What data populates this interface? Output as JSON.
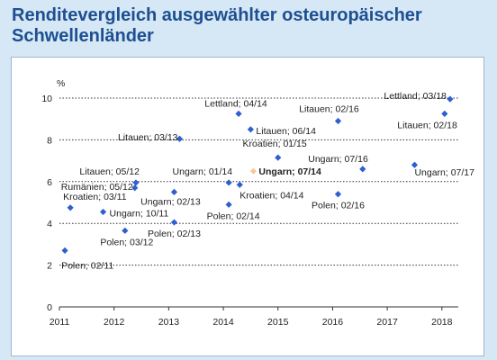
{
  "header": {
    "title_line1": "Renditevergleich ausgewählter osteuropäischer",
    "title_line2": "Schwellenländer"
  },
  "colors": {
    "background": "#d6e7f5",
    "title": "#1d4f91",
    "point": "#2e5fcf",
    "highlight_point": "#f6c8a2"
  },
  "chart_data": {
    "type": "scatter",
    "title": "Renditevergleich ausgewählter osteuropäischer Schwellenländer",
    "ylabel": "%",
    "xlabel": "",
    "xlim": [
      2011,
      2018.3
    ],
    "ylim": [
      0,
      10
    ],
    "x_ticks": [
      "2011",
      "2012",
      "2013",
      "2014",
      "2015",
      "2016",
      "2017",
      "2018"
    ],
    "y_ticks": [
      "0",
      "2",
      "4",
      "6",
      "8",
      "10"
    ],
    "grid": "horizontal dotted",
    "points": [
      {
        "label": "Polen; 02/11",
        "x": 2011.1,
        "y": 2.7
      },
      {
        "label": "Kroatien; 03/11",
        "x": 2011.2,
        "y": 4.75
      },
      {
        "label": "Ungarn; 10/11",
        "x": 2011.8,
        "y": 4.55
      },
      {
        "label": "Polen; 03/12",
        "x": 2012.2,
        "y": 3.65
      },
      {
        "label": "Rumänien; 05/12",
        "x": 2012.38,
        "y": 5.7
      },
      {
        "label": "Litauen; 05/12",
        "x": 2012.4,
        "y": 5.95
      },
      {
        "label": "Litauen; 03/13",
        "x": 2013.2,
        "y": 8.05
      },
      {
        "label": "Ungarn; 02/13",
        "x": 2013.1,
        "y": 5.5
      },
      {
        "label": "Polen; 02/13",
        "x": 2013.1,
        "y": 4.05
      },
      {
        "label": "Ungarn; 01/14",
        "x": 2014.1,
        "y": 5.95
      },
      {
        "label": "Polen; 02/14",
        "x": 2014.1,
        "y": 4.9
      },
      {
        "label": "Kroatien; 04/14",
        "x": 2014.3,
        "y": 5.85
      },
      {
        "label": "Lettland; 04/14",
        "x": 2014.28,
        "y": 9.25
      },
      {
        "label": "Litauen; 06/14",
        "x": 2014.5,
        "y": 8.5
      },
      {
        "label": "Kroatien; 01/15",
        "x": 2015.0,
        "y": 7.15
      },
      {
        "label": "Ungarn; 07/14",
        "x": 2014.55,
        "y": 6.5,
        "highlight": true
      },
      {
        "label": "Litauen; 02/16",
        "x": 2016.1,
        "y": 8.9
      },
      {
        "label": "Polen; 02/16",
        "x": 2016.1,
        "y": 5.4
      },
      {
        "label": "Ungarn; 07/16",
        "x": 2016.55,
        "y": 6.6
      },
      {
        "label": "Ungarn; 07/17",
        "x": 2017.5,
        "y": 6.8
      },
      {
        "label": "Lettland; 03/18",
        "x": 2018.15,
        "y": 9.95
      },
      {
        "label": "Litauen; 02/18",
        "x": 2018.05,
        "y": 9.25
      }
    ]
  }
}
